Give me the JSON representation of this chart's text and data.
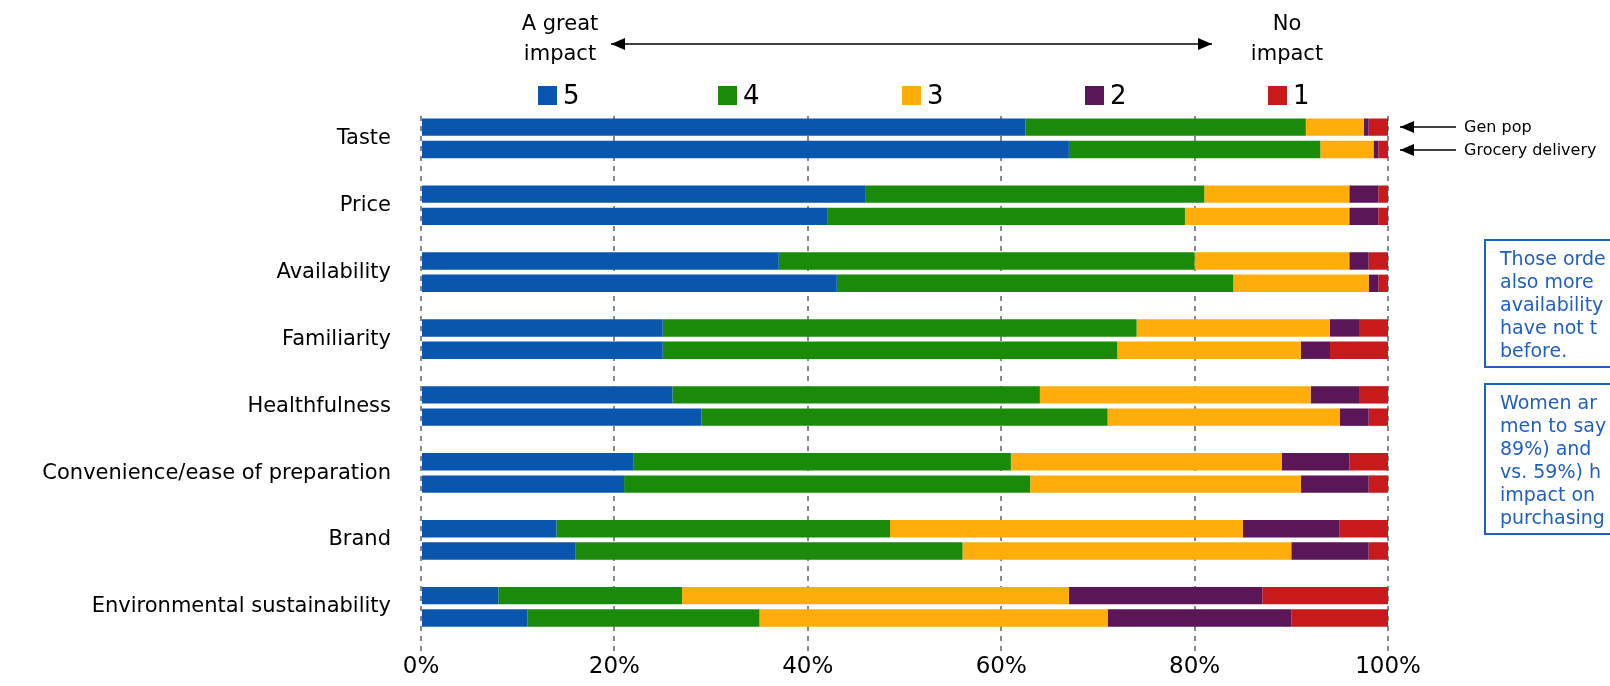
{
  "chart_data": {
    "type": "bar",
    "orientation": "horizontal",
    "stacked": true,
    "categories": [
      "Taste",
      null,
      null,
      "Price",
      null,
      null,
      "Availability",
      null,
      null,
      "Familiarity",
      null,
      null,
      "Healthfulness",
      null,
      null,
      "Convenience/ease of preparation",
      null,
      null,
      "Brand",
      null,
      null,
      "Environmental sustainability",
      null,
      null
    ],
    "series": [
      {
        "name": "5",
        "color": "#0a55ad",
        "values": [
          62.5,
          67,
          null,
          46,
          42,
          null,
          37,
          43,
          null,
          25,
          25,
          null,
          26,
          29,
          null,
          22,
          21,
          null,
          14,
          16,
          null,
          8,
          11,
          null
        ]
      },
      {
        "name": "4",
        "color": "#1a8a0a",
        "values": [
          29,
          26,
          null,
          35,
          37,
          null,
          43,
          41,
          null,
          49,
          47,
          null,
          38,
          42,
          null,
          39,
          42,
          null,
          34.5,
          40,
          null,
          19,
          24,
          null
        ]
      },
      {
        "name": "3",
        "color": "#ffad0a",
        "values": [
          6,
          5.5,
          null,
          15,
          17,
          null,
          16,
          14,
          null,
          20,
          19,
          null,
          28,
          24,
          null,
          28,
          28,
          null,
          36.5,
          34,
          null,
          40,
          36,
          null
        ]
      },
      {
        "name": "2",
        "color": "#5a1657",
        "values": [
          0.5,
          0.5,
          null,
          3,
          3,
          null,
          2,
          1,
          null,
          3,
          3,
          null,
          5,
          3,
          null,
          7,
          7,
          null,
          10,
          8,
          null,
          20,
          19,
          null
        ]
      },
      {
        "name": "1",
        "color": "#c81a1a",
        "values": [
          2,
          1,
          null,
          1,
          1,
          null,
          2,
          1,
          null,
          3,
          6,
          null,
          3,
          2,
          null,
          4,
          2,
          null,
          5,
          2,
          null,
          13,
          10,
          null
        ]
      }
    ],
    "xlim": [
      0,
      100
    ],
    "xticks": [
      {
        "value": 0,
        "label": "0%"
      },
      {
        "value": 20,
        "label": "20%"
      },
      {
        "value": 40,
        "label": "40%"
      },
      {
        "value": 60,
        "label": "60%"
      },
      {
        "value": 80,
        "label": "80%"
      },
      {
        "value": 100,
        "label": "100%"
      }
    ],
    "grid": "x",
    "legend": "top",
    "annotations": [
      "A great impact",
      "No impact",
      "Gen pop",
      "Grocery delivery",
      "Those orde\nalso more\navailability\nhave not t\nbefore.",
      "Women ar\nmen to say\n89%) and\nvs. 59%) h\nimpact on\npurchasing"
    ]
  }
}
